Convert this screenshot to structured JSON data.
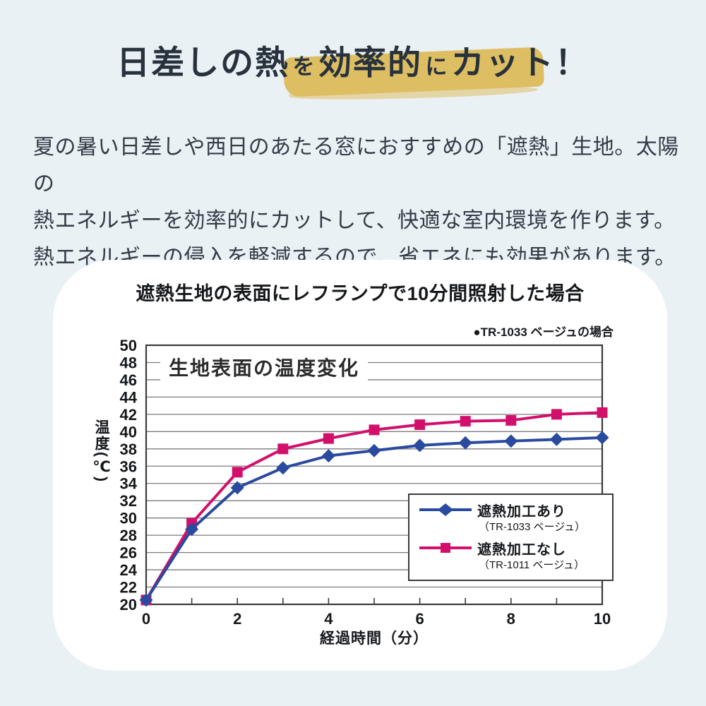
{
  "page": {
    "heading": {
      "seg1": "日差しの熱",
      "seg2": "を",
      "seg3": "効率的",
      "seg4": "に",
      "seg5": "カット！",
      "highlight_color": "#dcba57"
    },
    "paragraph_lines": [
      "夏の暑い日差しや西日のあたる窓におすすめの「遮熱」生地。太陽の",
      "熱エネルギーを効率的にカットして、快適な室内環境を作ります。",
      "熱エネルギーの侵入を軽減するので、省エネにも効果があります。"
    ]
  },
  "chart_card": {
    "title": "遮熱生地の表面にレフランプで10分間照射した場合",
    "note": "●TR-1033 ベージュの場合",
    "inner_title": "生地表面の温度変化",
    "xlabel": "経過時間（分）",
    "ylabel": "温度(℃)"
  },
  "chart_data": {
    "type": "line",
    "title": "生地表面の温度変化",
    "xlabel": "経過時間（分）",
    "ylabel": "温度(℃)",
    "x": [
      0,
      1,
      2,
      3,
      4,
      5,
      6,
      7,
      8,
      9,
      10
    ],
    "series": [
      {
        "name": "遮熱加工あり",
        "sublabel": "（TR-1033 ベージュ）",
        "color": "#2a4a9f",
        "marker": "diamond",
        "values": [
          20.5,
          28.7,
          33.5,
          35.8,
          37.2,
          37.8,
          38.4,
          38.7,
          38.9,
          39.1,
          39.3
        ]
      },
      {
        "name": "遮熱加工なし",
        "sublabel": "（TR-1011 ベージュ）",
        "color": "#d2106c",
        "marker": "square",
        "values": [
          20.5,
          29.4,
          35.3,
          38.0,
          39.2,
          40.2,
          40.8,
          41.2,
          41.3,
          42.0,
          42.2
        ]
      }
    ],
    "xlim": [
      0,
      10
    ],
    "ylim": [
      20,
      50
    ],
    "xtick_step": 2,
    "ytick_step": 2,
    "grid": true,
    "legend_position": "inside-right-bottom",
    "grid_color": "#7b7b7b",
    "frame_color": "#3a3a3a"
  }
}
